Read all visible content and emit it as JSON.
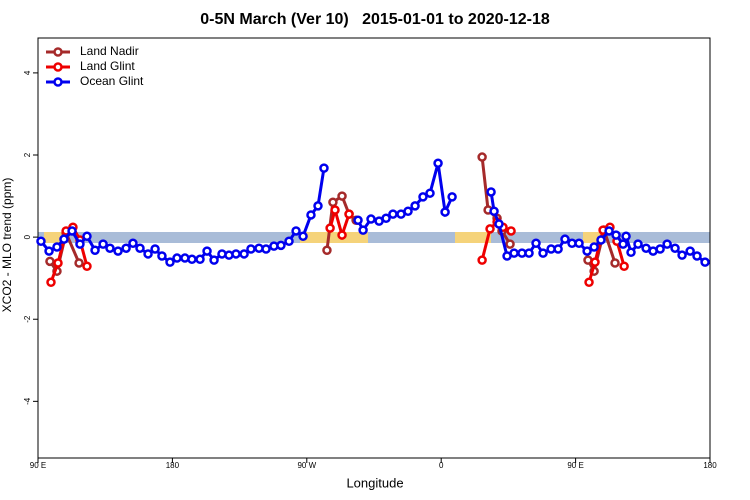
{
  "chart_data": {
    "type": "line",
    "title": "0-5N March (Ver 10)   2015-01-01 to 2020-12-18",
    "x_label": "Longitude",
    "y_label": "XCO2 - MLO trend (ppm)",
    "xlim": [
      90,
      540
    ],
    "ylim": [
      -5.38,
      4.85
    ],
    "xticks": [
      {
        "value": 90,
        "label": "90 E"
      },
      {
        "value": 180,
        "label": "180"
      },
      {
        "value": 270,
        "label": "90 W"
      },
      {
        "value": 360,
        "label": "0"
      },
      {
        "value": 450,
        "label": "90 E"
      },
      {
        "value": 540,
        "label": "180"
      }
    ],
    "yticks": [
      -4,
      -2,
      0,
      2,
      4
    ],
    "legend": "top-left",
    "series": [
      {
        "name": "Land Nadir",
        "color": "#a52a2a",
        "x": [
          98.0,
          102.7,
          108.8,
          117.5,
          200,
          283.5,
          287.5,
          293.6,
          298.3,
          303.0,
          380,
          387.4,
          391.4,
          397.4,
          400.7,
          406.1,
          430,
          458.3,
          462.4,
          469.1,
          476.4
        ],
        "values": [
          -0.59,
          -0.83,
          0.1,
          -0.63,
          null,
          -0.32,
          0.85,
          1.0,
          0.56,
          0.41,
          null,
          1.95,
          0.66,
          0.46,
          0.15,
          -0.17,
          null,
          -0.56,
          -0.83,
          0.17,
          -0.63
        ]
      },
      {
        "name": "Land Glint",
        "color": "#ee0000",
        "x": [
          98.7,
          103.4,
          108.8,
          113.4,
          118.1,
          122.8,
          200,
          285.6,
          288.9,
          293.6,
          298.3,
          380,
          387.4,
          392.7,
          397.4,
          401.4,
          406.8,
          430,
          459.0,
          463.0,
          468.4,
          473.0,
          477.7,
          482.5
        ],
        "values": [
          -1.1,
          -0.63,
          0.15,
          0.24,
          -0.07,
          -0.71,
          null,
          0.22,
          0.66,
          0.05,
          0.56,
          null,
          -0.56,
          0.2,
          0.37,
          0.24,
          0.15,
          null,
          -1.1,
          -0.61,
          0.17,
          0.24,
          -0.1,
          -0.71
        ]
      },
      {
        "name": "Ocean Glint",
        "color": "#0000ee",
        "x": [
          92.0,
          97.4,
          102.7,
          107.4,
          112.8,
          118.1,
          122.8,
          128.2,
          133.6,
          138.2,
          143.6,
          149.0,
          153.6,
          158.3,
          163.7,
          168.4,
          173.0,
          178.4,
          183.1,
          188.4,
          193.1,
          198.5,
          203.2,
          207.9,
          213.2,
          217.9,
          222.6,
          228.0,
          232.6,
          238.0,
          242.7,
          248.0,
          252.7,
          258.1,
          262.8,
          267.5,
          272.8,
          277.5,
          281.5,
          285,
          304.3,
          307.7,
          313.0,
          318.4,
          323.1,
          327.7,
          333.1,
          337.8,
          342.5,
          347.8,
          352.5,
          357.9,
          362.6,
          367.3,
          380,
          393.4,
          395.4,
          398.7,
          404.1,
          408.8,
          414.1,
          418.8,
          423.5,
          428.2,
          433.6,
          438.3,
          442.9,
          447.6,
          452.3,
          457.7,
          462.4,
          467.0,
          472.4,
          477.1,
          481.8,
          483.8,
          487.1,
          491.8,
          497.2,
          501.9,
          506.6,
          511.3,
          516.6,
          521.3,
          526.7,
          531.3,
          536.7
        ],
        "values": [
          -0.1,
          -0.34,
          -0.24,
          -0.05,
          0.15,
          -0.17,
          0.02,
          -0.32,
          -0.17,
          -0.27,
          -0.34,
          -0.27,
          -0.15,
          -0.27,
          -0.41,
          -0.29,
          -0.46,
          -0.61,
          -0.51,
          -0.51,
          -0.54,
          -0.54,
          -0.34,
          -0.56,
          -0.41,
          -0.44,
          -0.41,
          -0.41,
          -0.29,
          -0.27,
          -0.29,
          -0.22,
          -0.2,
          -0.1,
          0.15,
          0.02,
          0.54,
          0.76,
          1.68,
          null,
          0.41,
          0.17,
          0.44,
          0.39,
          0.46,
          0.56,
          0.56,
          0.63,
          0.76,
          0.98,
          1.07,
          1.8,
          0.61,
          0.98,
          null,
          1.1,
          0.63,
          0.32,
          -0.46,
          -0.39,
          -0.39,
          -0.39,
          -0.15,
          -0.39,
          -0.29,
          -0.29,
          -0.05,
          -0.15,
          -0.15,
          -0.34,
          -0.24,
          -0.07,
          0.15,
          0.05,
          -0.17,
          0.02,
          -0.37,
          -0.17,
          -0.27,
          -0.34,
          -0.29,
          -0.17,
          -0.27,
          -0.44,
          -0.34,
          -0.46,
          -0.61
        ]
      }
    ]
  }
}
